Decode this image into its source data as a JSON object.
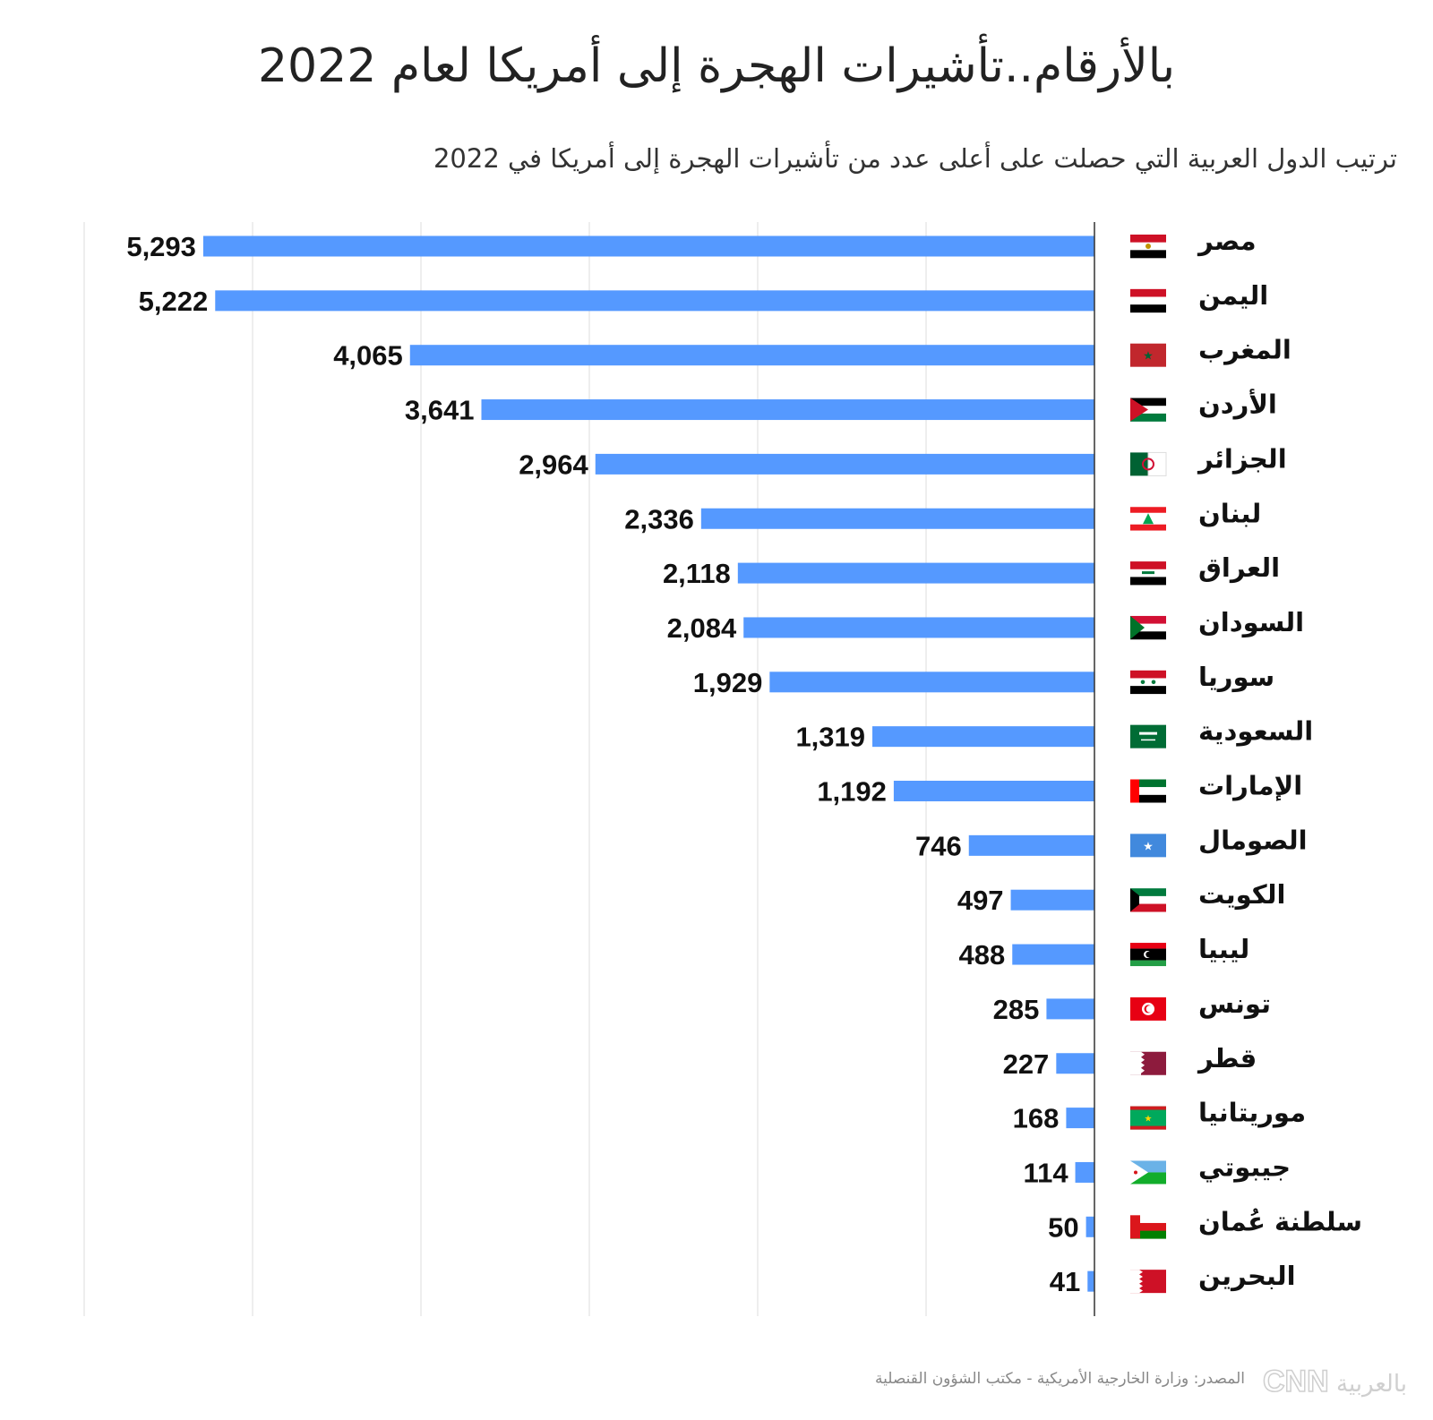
{
  "title": "بالأرقام..تأشيرات الهجرة إلى أمريكا لعام 2022",
  "subtitle": "ترتيب الدول العربية التي حصلت على أعلى عدد من تأشيرات الهجرة إلى أمريكا في 2022",
  "source": "المصدر: وزارة الخارجية الأمريكية - مكتب الشؤون القنصلية",
  "logo_text": "CNN بالعربية",
  "bar_color": "#5599ff",
  "chart_data": {
    "type": "bar",
    "orientation": "horizontal",
    "categories": [
      "مصر",
      "اليمن",
      "المغرب",
      "الأردن",
      "الجزائر",
      "لبنان",
      "العراق",
      "السودان",
      "سوريا",
      "السعودية",
      "الإمارات",
      "الصومال",
      "الكويت",
      "ليبيا",
      "تونس",
      "قطر",
      "موريتانيا",
      "جيبوتي",
      "سلطنة عُمان",
      "البحرين"
    ],
    "values": [
      5293,
      5222,
      4065,
      3641,
      2964,
      2336,
      2118,
      2084,
      1929,
      1319,
      1192,
      746,
      497,
      488,
      285,
      227,
      168,
      114,
      50,
      41
    ],
    "value_labels": [
      "5,293",
      "5,222",
      "4,065",
      "3,641",
      "2,964",
      "2,336",
      "2,118",
      "2,084",
      "1,929",
      "1,319",
      "1,192",
      "746",
      "497",
      "488",
      "285",
      "227",
      "168",
      "114",
      "50",
      "41"
    ],
    "flags": [
      "egypt-flag-icon",
      "yemen-flag-icon",
      "morocco-flag-icon",
      "jordan-flag-icon",
      "algeria-flag-icon",
      "lebanon-flag-icon",
      "iraq-flag-icon",
      "sudan-flag-icon",
      "syria-flag-icon",
      "saudi-flag-icon",
      "uae-flag-icon",
      "somalia-flag-icon",
      "kuwait-flag-icon",
      "libya-flag-icon",
      "tunisia-flag-icon",
      "qatar-flag-icon",
      "mauritania-flag-icon",
      "djibouti-flag-icon",
      "oman-flag-icon",
      "bahrain-flag-icon"
    ],
    "xlim": [
      0,
      6000
    ],
    "grid": true,
    "title": "بالأرقام..تأشيرات الهجرة إلى أمريكا لعام 2022",
    "xlabel": "",
    "ylabel": ""
  }
}
